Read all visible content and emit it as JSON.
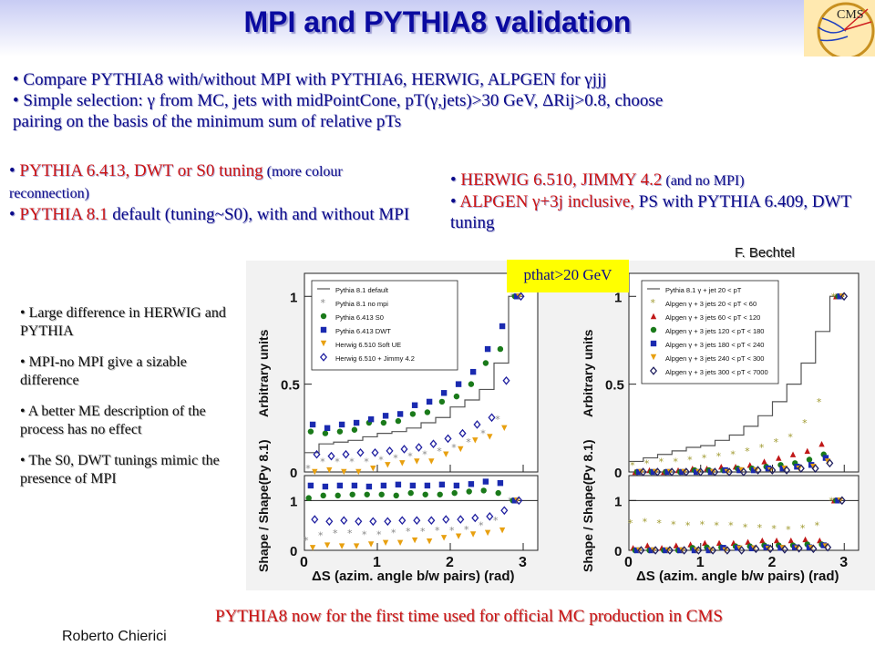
{
  "title": "MPI and PYTHIA8 validation",
  "logo_text": "CMS",
  "top_bullets": [
    "• Compare PYTHIA8 with/without MPI with PYTHIA6, HERWIG, ALPGEN for γjjj",
    "• Simple selection: γ from MC, jets with midPointCone, pT(γ,jets)>30 GeV, ΔRij>0.8, choose",
    "pairing on the basis of the minimum sum of relative pTs"
  ],
  "left_col": {
    "b1_red": "PYTHIA 6.413, DWT or S0 tuning",
    "b1_small": " (more colour reconnection)",
    "b2_red": "PYTHIA 8.1",
    "b2_rest": " default (tuning~S0), with and without MPI"
  },
  "right_col": {
    "b1_red": "HERWIG 6.510, JIMMY 4.2",
    "b1_small": " (and no MPI)",
    "b2_red": "ALPGEN γ+3j inclusive,",
    "b2_rest": " PS with PYTHIA 6.409, DWT tuning"
  },
  "credit": "F. Bechtel",
  "pthat_label": "pthat>20 GeV",
  "notes": [
    "• Large difference in HERWIG and PYTHIA",
    "• MPI-no MPI give a sizable difference",
    "• A better ME description of the process has no effect",
    "• The S0, DWT tunings mimic the presence of MPI"
  ],
  "bottom_text": "PYTHIA8 now for the first time used for official MC production in CMS",
  "author": "Roberto Chierici",
  "chart_data": [
    {
      "type": "scatter",
      "xlabel": "ΔS (azim. angle b/w pairs) (rad)",
      "ylabel_top": "Arbitrary units",
      "ylabel_bottom": "Shape / Shape(Py 8.1)",
      "x_ticks": [
        "0",
        "1",
        "2",
        "3"
      ],
      "y_ticks_top": [
        "0",
        "0.5",
        "1"
      ],
      "y_ticks_bottom": [
        "0",
        "1"
      ],
      "xlim": [
        0,
        3.2
      ],
      "ylim_top": [
        0,
        1.1
      ],
      "ylim_bottom": [
        0,
        1.5
      ],
      "x": [
        0.1,
        0.3,
        0.5,
        0.7,
        0.9,
        1.1,
        1.3,
        1.5,
        1.7,
        1.9,
        2.1,
        2.3,
        2.5,
        2.7,
        2.9
      ],
      "series": [
        {
          "name": "Pythia 8.1 default",
          "marker": "line",
          "color": "#555555",
          "values": [
            0.11,
            0.16,
            0.17,
            0.18,
            0.2,
            0.22,
            0.23,
            0.25,
            0.28,
            0.31,
            0.37,
            0.41,
            0.47,
            0.62,
            1.0
          ]
        },
        {
          "name": "Pythia 8.1 no mpi",
          "marker": "star",
          "color": "#888888",
          "values": [
            0.02,
            0.06,
            0.06,
            0.06,
            0.06,
            0.07,
            0.08,
            0.09,
            0.1,
            0.12,
            0.14,
            0.17,
            0.22,
            0.3,
            1.0
          ]
        },
        {
          "name": "Pythia 6.413 S0",
          "marker": "circle",
          "color": "#1a7a1a",
          "values": [
            0.23,
            0.22,
            0.23,
            0.24,
            0.28,
            0.28,
            0.29,
            0.33,
            0.34,
            0.4,
            0.43,
            0.5,
            0.62,
            0.7,
            1.0
          ]
        },
        {
          "name": "Pythia 6.413 DWT",
          "marker": "square",
          "color": "#1a2ab0",
          "values": [
            0.27,
            0.25,
            0.27,
            0.28,
            0.3,
            0.32,
            0.33,
            0.38,
            0.4,
            0.45,
            0.5,
            0.57,
            0.7,
            0.83,
            1.0
          ]
        },
        {
          "name": "Herwig 6.510 Soft UE",
          "marker": "triangle-down",
          "color": "#e8a010",
          "values": [
            0.0,
            0.01,
            0.0,
            0.0,
            0.02,
            0.04,
            0.05,
            0.06,
            0.06,
            0.1,
            0.13,
            0.18,
            0.2,
            0.25,
            1.0
          ]
        },
        {
          "name": "Herwig 6.510 + Jimmy 4.2",
          "marker": "diamond-open",
          "color": "#2020a0",
          "values": [
            0.1,
            0.09,
            0.1,
            0.11,
            0.11,
            0.12,
            0.13,
            0.14,
            0.16,
            0.19,
            0.22,
            0.27,
            0.31,
            0.52,
            1.0
          ]
        }
      ],
      "ratio_series": [
        {
          "name": "Pythia 8.1 no mpi",
          "values": [
            0.2,
            0.3,
            0.35,
            0.35,
            0.32,
            0.32,
            0.36,
            0.38,
            0.38,
            0.4,
            0.4,
            0.42,
            0.5,
            0.6,
            1.0
          ]
        },
        {
          "name": "Pythia 6.413 S0",
          "values": [
            1.05,
            1.1,
            1.1,
            1.12,
            1.12,
            1.12,
            1.1,
            1.15,
            1.12,
            1.12,
            1.15,
            1.18,
            1.2,
            1.15,
            1.0
          ]
        },
        {
          "name": "Pythia 6.413 DWT",
          "values": [
            1.3,
            1.28,
            1.3,
            1.3,
            1.28,
            1.3,
            1.32,
            1.3,
            1.3,
            1.32,
            1.3,
            1.33,
            1.38,
            1.35,
            1.0
          ]
        },
        {
          "name": "Herwig 6.510 Soft UE",
          "values": [
            0.05,
            0.1,
            0.08,
            0.08,
            0.12,
            0.15,
            0.15,
            0.2,
            0.18,
            0.25,
            0.28,
            0.32,
            0.35,
            0.4,
            1.0
          ]
        },
        {
          "name": "Herwig 6.510 + Jimmy 4.2",
          "values": [
            0.62,
            0.58,
            0.6,
            0.58,
            0.58,
            0.58,
            0.6,
            0.6,
            0.6,
            0.62,
            0.62,
            0.65,
            0.68,
            0.8,
            1.0
          ]
        }
      ]
    },
    {
      "type": "scatter",
      "xlabel": "ΔS (azim. angle b/w pairs) (rad)",
      "ylabel_top": "Arbitrary units",
      "ylabel_bottom": "Shape / Shape(Py 8.1)",
      "x_ticks": [
        "0",
        "1",
        "2",
        "3"
      ],
      "y_ticks_top": [
        "0",
        "0.5",
        "1"
      ],
      "y_ticks_bottom": [
        "0",
        "1"
      ],
      "xlim": [
        0,
        3.2
      ],
      "ylim_top": [
        0,
        1.1
      ],
      "ylim_bottom": [
        0,
        1.5
      ],
      "x": [
        0.1,
        0.3,
        0.5,
        0.7,
        0.9,
        1.1,
        1.3,
        1.5,
        1.7,
        1.9,
        2.1,
        2.3,
        2.5,
        2.7,
        2.9
      ],
      "series": [
        {
          "name": "Pythia 8.1 γ + jet 20 < pT",
          "marker": "line",
          "color": "#555555",
          "values": [
            0.06,
            0.08,
            0.1,
            0.12,
            0.14,
            0.15,
            0.18,
            0.21,
            0.26,
            0.32,
            0.4,
            0.5,
            0.62,
            0.8,
            1.0
          ]
        },
        {
          "name": "Alpgen γ + 3 jets 20 < pT < 60",
          "marker": "star",
          "color": "#a09a30",
          "values": [
            0.04,
            0.05,
            0.06,
            0.06,
            0.07,
            0.08,
            0.09,
            0.1,
            0.12,
            0.14,
            0.17,
            0.2,
            0.28,
            0.4,
            1.0
          ]
        },
        {
          "name": "Alpgen γ + 3 jets 60 < pT < 120",
          "marker": "triangle",
          "color": "#c01818",
          "values": [
            0.0,
            0.01,
            0.0,
            0.01,
            0.02,
            0.02,
            0.03,
            0.03,
            0.04,
            0.06,
            0.08,
            0.1,
            0.12,
            0.16,
            1.0
          ]
        },
        {
          "name": "Alpgen γ + 3 jets 120 < pT < 180",
          "marker": "circle",
          "color": "#1a7a1a",
          "values": [
            0.0,
            0.0,
            0.0,
            0.0,
            0.01,
            0.01,
            0.01,
            0.02,
            0.02,
            0.03,
            0.04,
            0.05,
            0.07,
            0.1,
            1.0
          ]
        },
        {
          "name": "Alpgen γ + 3 jets 180 < pT < 240",
          "marker": "square",
          "color": "#1a2ab0",
          "values": [
            0.0,
            0.0,
            0.0,
            0.0,
            0.0,
            0.0,
            0.01,
            0.01,
            0.01,
            0.02,
            0.02,
            0.03,
            0.04,
            0.08,
            1.0
          ]
        },
        {
          "name": "Alpgen γ + 3 jets 240 < pT < 300",
          "marker": "triangle-down",
          "color": "#e8a010",
          "values": [
            0.0,
            0.0,
            0.0,
            0.0,
            0.0,
            0.0,
            0.0,
            0.01,
            0.01,
            0.01,
            0.02,
            0.02,
            0.03,
            0.06,
            1.0
          ]
        },
        {
          "name": "Alpgen γ + 3 jets 300 < pT < 7000",
          "marker": "diamond-open",
          "color": "#202060",
          "values": [
            0.0,
            0.0,
            0.0,
            0.0,
            0.0,
            0.0,
            0.0,
            0.0,
            0.01,
            0.01,
            0.01,
            0.02,
            0.02,
            0.05,
            1.0
          ]
        }
      ],
      "ratio_series": [
        {
          "name": "Alpgen γ + 3 jets 20 < pT < 60",
          "values": [
            0.55,
            0.58,
            0.55,
            0.52,
            0.5,
            0.52,
            0.5,
            0.5,
            0.47,
            0.46,
            0.44,
            0.42,
            0.45,
            0.5,
            1.0
          ]
        },
        {
          "name": "Alpgen γ + 3 jets 60 < pT < 120",
          "values": [
            0.05,
            0.1,
            0.05,
            0.1,
            0.12,
            0.15,
            0.15,
            0.15,
            0.17,
            0.2,
            0.2,
            0.2,
            0.22,
            0.2,
            1.0
          ]
        },
        {
          "name": "Alpgen γ + 3 jets 120 < pT < 180",
          "values": [
            0.0,
            0.0,
            0.0,
            0.0,
            0.05,
            0.06,
            0.06,
            0.08,
            0.08,
            0.1,
            0.1,
            0.1,
            0.12,
            0.12,
            1.0
          ]
        },
        {
          "name": "Alpgen γ + 3 jets 180 < pT < 240",
          "values": [
            0.0,
            0.0,
            0.0,
            0.0,
            0.0,
            0.0,
            0.05,
            0.05,
            0.04,
            0.06,
            0.05,
            0.06,
            0.06,
            0.1,
            1.0
          ]
        },
        {
          "name": "Alpgen γ + 3 jets 240 < pT < 300",
          "values": [
            0.0,
            0.0,
            0.0,
            0.0,
            0.0,
            0.0,
            0.0,
            0.04,
            0.04,
            0.03,
            0.05,
            0.04,
            0.05,
            0.08,
            1.0
          ]
        },
        {
          "name": "Alpgen γ + 3 jets 300 < pT < 7000",
          "values": [
            0.0,
            0.0,
            0.0,
            0.0,
            0.0,
            0.0,
            0.0,
            0.0,
            0.03,
            0.03,
            0.02,
            0.04,
            0.03,
            0.06,
            1.0
          ]
        }
      ]
    }
  ]
}
